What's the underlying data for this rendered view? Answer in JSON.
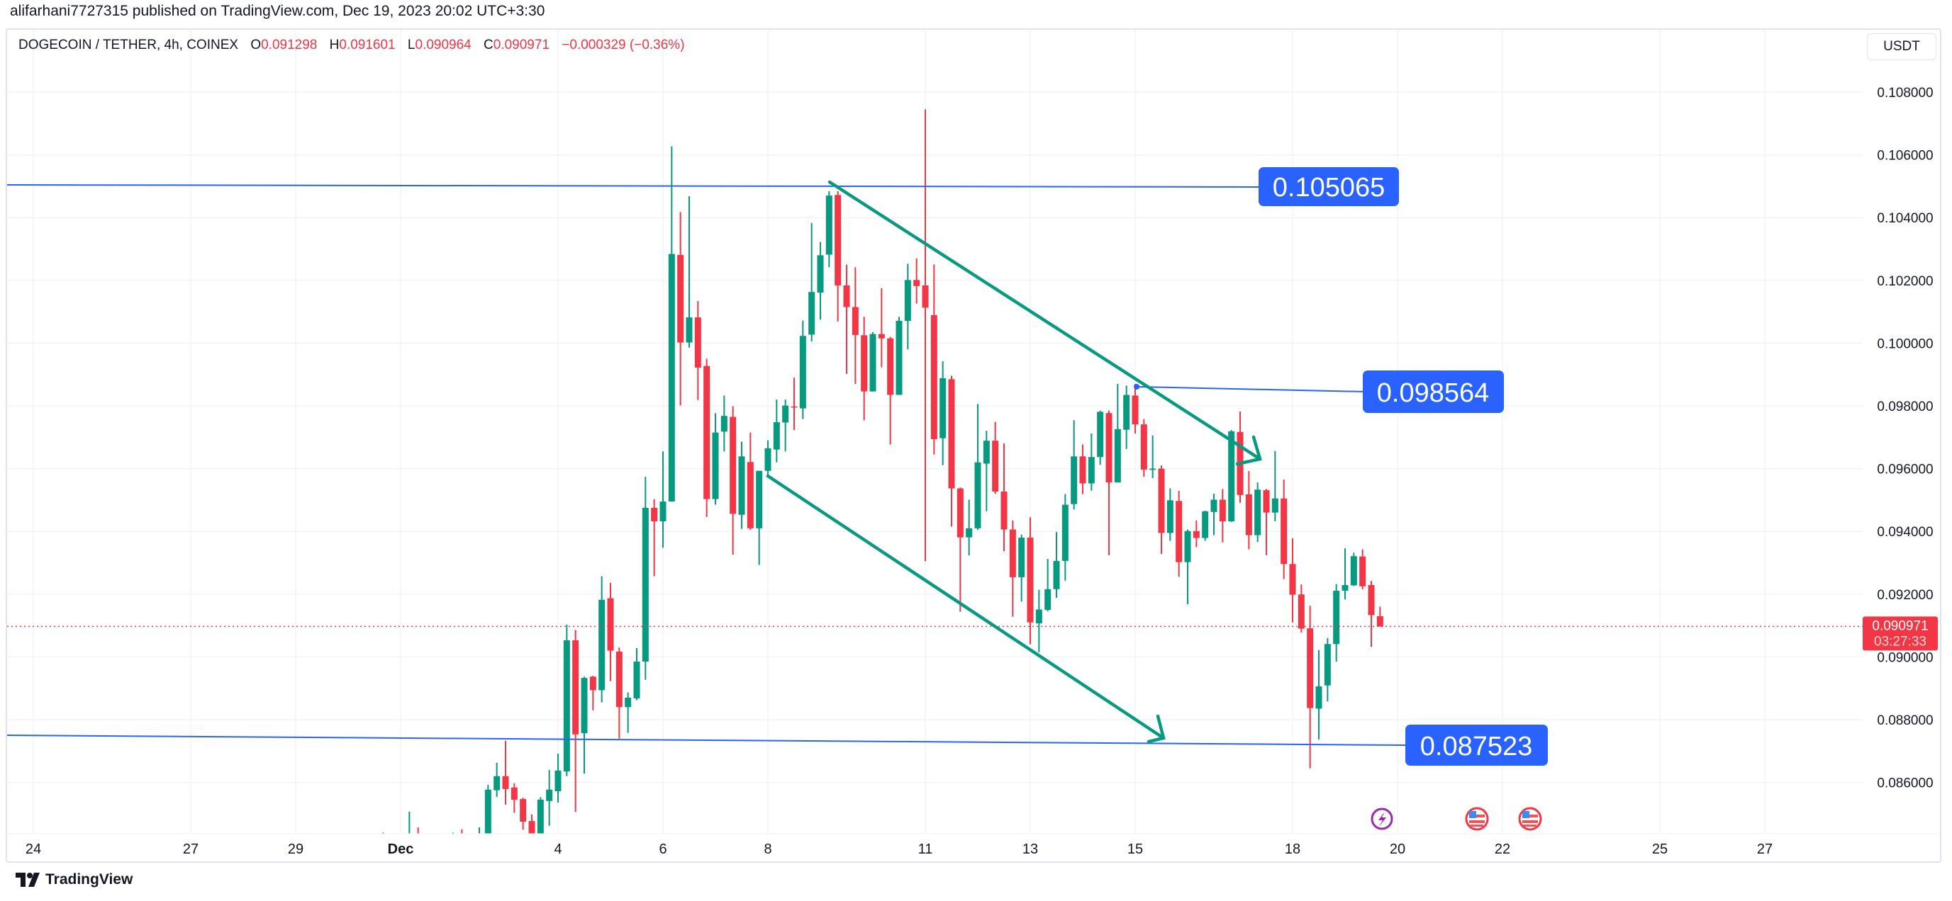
{
  "header": {
    "published": "alifarhani7727315 published on TradingView.com, Dec 19, 2023 20:02 UTC+3:30",
    "symbol": "DOGECOIN / TETHER, 4h, COINEX",
    "o_label": "O",
    "o_value": "0.091298",
    "h_label": "H",
    "h_value": "0.091601",
    "l_label": "L",
    "l_value": "0.090964",
    "c_label": "C",
    "c_value": "0.090971",
    "change": "−0.000329 (−0.36%)"
  },
  "currency_button": "USDT",
  "current_price": {
    "value": "0.090971",
    "countdown": "03:27:33",
    "price": 0.090971
  },
  "drawings": {
    "level_high": "0.105065",
    "level_mid": "0.098564",
    "level_low": "0.087523"
  },
  "events": [
    {
      "icon": "lightning-icon"
    },
    {
      "icon": "us-flag-icon"
    },
    {
      "icon": "us-flag-icon"
    }
  ],
  "footer": {
    "brand": "TradingView"
  },
  "colors": {
    "up": "#089981",
    "down": "#f23645",
    "drawing_blue": "#2962ff",
    "trend_green": "#089981"
  },
  "chart_data": {
    "type": "candlestick",
    "title": "DOGECOIN / TETHER, 4h, COINEX",
    "interval_hours": 4,
    "last_candle_hour_from_dec1": 448,
    "ylim": [
      0.0843,
      0.1092
    ],
    "y_ticks": [
      "0.108000",
      "0.106000",
      "0.104000",
      "0.102000",
      "0.100000",
      "0.098000",
      "0.096000",
      "0.094000",
      "0.092000",
      "0.090000",
      "0.088000",
      "0.086000"
    ],
    "x_ticks": [
      {
        "label": "24",
        "day": -7
      },
      {
        "label": "27",
        "day": -4
      },
      {
        "label": "29",
        "day": -2
      },
      {
        "label": "Dec",
        "day": 0,
        "bold": true
      },
      {
        "label": "4",
        "day": 3
      },
      {
        "label": "6",
        "day": 5
      },
      {
        "label": "8",
        "day": 7
      },
      {
        "label": "11",
        "day": 10
      },
      {
        "label": "13",
        "day": 12
      },
      {
        "label": "15",
        "day": 14
      },
      {
        "label": "18",
        "day": 17
      },
      {
        "label": "20",
        "day": 19
      },
      {
        "label": "22",
        "day": 21
      },
      {
        "label": "25",
        "day": 24
      },
      {
        "label": "27",
        "day": 26
      }
    ],
    "candles_ohlc": [
      [
        0.0838,
        0.0844,
        0.0835,
        0.0841
      ],
      [
        0.0841,
        0.0843,
        0.0837,
        0.084
      ],
      [
        0.084,
        0.0842,
        0.0835,
        0.0838
      ],
      [
        0.0838,
        0.08507,
        0.0836,
        0.0842
      ],
      [
        0.0842,
        0.08457,
        0.0838,
        0.084
      ],
      [
        0.084,
        0.0843,
        0.0838,
        0.0841
      ],
      [
        0.0841,
        0.0843,
        0.0837,
        0.0839
      ],
      [
        0.0839,
        0.0842,
        0.0837,
        0.084
      ],
      [
        0.084,
        0.0844,
        0.0838,
        0.0842
      ],
      [
        0.0842,
        0.0845,
        0.0839,
        0.0841
      ],
      [
        0.0841,
        0.0843,
        0.0838,
        0.084
      ],
      [
        0.084,
        0.08457,
        0.0839,
        0.0842
      ],
      [
        0.0842,
        0.08592,
        0.0841,
        0.08577
      ],
      [
        0.08575,
        0.08663,
        0.08554,
        0.0862
      ],
      [
        0.0862,
        0.08733,
        0.08529,
        0.08579
      ],
      [
        0.08584,
        0.08597,
        0.08503,
        0.08545
      ],
      [
        0.08547,
        0.08551,
        0.0845,
        0.08475
      ],
      [
        0.08477,
        0.08498,
        0.0841,
        0.0843
      ],
      [
        0.0843,
        0.08553,
        0.0842,
        0.08545
      ],
      [
        0.08541,
        0.0864,
        0.08462,
        0.08577
      ],
      [
        0.08572,
        0.08692,
        0.08536,
        0.08638
      ],
      [
        0.08635,
        0.09103,
        0.0862,
        0.09053
      ],
      [
        0.09053,
        0.09086,
        0.08506,
        0.08753
      ],
      [
        0.08757,
        0.08937,
        0.08628,
        0.08933
      ],
      [
        0.08937,
        0.0894,
        0.0883,
        0.08894
      ],
      [
        0.08894,
        0.09257,
        0.08855,
        0.09182
      ],
      [
        0.09187,
        0.09236,
        0.08923,
        0.0902
      ],
      [
        0.09017,
        0.0903,
        0.0874,
        0.0884
      ],
      [
        0.0884,
        0.08887,
        0.08758,
        0.0887
      ],
      [
        0.08868,
        0.09028,
        0.08862,
        0.08985
      ],
      [
        0.08985,
        0.09574,
        0.08927,
        0.09475
      ],
      [
        0.09475,
        0.09503,
        0.09257,
        0.09432
      ],
      [
        0.09432,
        0.09655,
        0.09348,
        0.09495
      ],
      [
        0.09495,
        0.10627,
        0.09495,
        0.10284
      ],
      [
        0.10281,
        0.10418,
        0.09801,
        0.10002
      ],
      [
        0.10002,
        0.10468,
        0.09986,
        0.10082
      ],
      [
        0.10082,
        0.10134,
        0.09819,
        0.09922
      ],
      [
        0.09927,
        0.0995,
        0.09446,
        0.09503
      ],
      [
        0.09503,
        0.09777,
        0.09485,
        0.09715
      ],
      [
        0.09718,
        0.09833,
        0.09655,
        0.09768
      ],
      [
        0.09765,
        0.09799,
        0.09326,
        0.09456
      ],
      [
        0.09453,
        0.09686,
        0.09408,
        0.09639
      ],
      [
        0.09621,
        0.09715,
        0.09405,
        0.0941
      ],
      [
        0.0941,
        0.09593,
        0.09293,
        0.09593
      ],
      [
        0.09593,
        0.0969,
        0.0958,
        0.09665
      ],
      [
        0.09661,
        0.0982,
        0.0962,
        0.09748
      ],
      [
        0.09747,
        0.0982,
        0.09655,
        0.09801
      ],
      [
        0.09798,
        0.0989,
        0.09723,
        0.09795
      ],
      [
        0.09792,
        0.10072,
        0.09758,
        0.10023
      ],
      [
        0.10027,
        0.10383,
        0.10005,
        0.10163
      ],
      [
        0.10161,
        0.10322,
        0.10075,
        0.1028
      ],
      [
        0.10282,
        0.10484,
        0.10242,
        0.1047
      ],
      [
        0.10472,
        0.10484,
        0.10069,
        0.10184
      ],
      [
        0.10184,
        0.1025,
        0.09902,
        0.10115
      ],
      [
        0.10115,
        0.10242,
        0.0987,
        0.10026
      ],
      [
        0.10025,
        0.10084,
        0.09754,
        0.09846
      ],
      [
        0.09846,
        0.10035,
        0.09846,
        0.10029
      ],
      [
        0.10029,
        0.10175,
        0.09923,
        0.10015
      ],
      [
        0.10015,
        0.1002,
        0.09677,
        0.09835
      ],
      [
        0.09835,
        0.10084,
        0.09835,
        0.10071
      ],
      [
        0.10071,
        0.10253,
        0.0998,
        0.10201
      ],
      [
        0.10201,
        0.1027,
        0.10126,
        0.10182
      ],
      [
        0.10184,
        0.10745,
        0.09305,
        0.10113
      ],
      [
        0.10089,
        0.10251,
        0.09645,
        0.09694
      ],
      [
        0.09697,
        0.09942,
        0.09611,
        0.09888
      ],
      [
        0.09885,
        0.09896,
        0.09415,
        0.09537
      ],
      [
        0.09537,
        0.0954,
        0.09144,
        0.09381
      ],
      [
        0.09381,
        0.09501,
        0.09323,
        0.0941
      ],
      [
        0.0941,
        0.09806,
        0.09405,
        0.0962
      ],
      [
        0.09616,
        0.09721,
        0.09464,
        0.09689
      ],
      [
        0.09689,
        0.09749,
        0.0952,
        0.09527
      ],
      [
        0.09527,
        0.0968,
        0.09337,
        0.09406
      ],
      [
        0.09406,
        0.09435,
        0.09128,
        0.09254
      ],
      [
        0.09254,
        0.0939,
        0.09176,
        0.0938
      ],
      [
        0.0938,
        0.09445,
        0.0904,
        0.0911
      ],
      [
        0.09107,
        0.09214,
        0.09015,
        0.09151
      ],
      [
        0.0915,
        0.09312,
        0.09145,
        0.09216
      ],
      [
        0.09216,
        0.09398,
        0.09188,
        0.09306
      ],
      [
        0.09306,
        0.09519,
        0.09243,
        0.09485
      ],
      [
        0.09487,
        0.09754,
        0.0947,
        0.09639
      ],
      [
        0.09639,
        0.09677,
        0.09519,
        0.09553
      ],
      [
        0.09553,
        0.09712,
        0.0953,
        0.09637
      ],
      [
        0.09637,
        0.09785,
        0.09612,
        0.09781
      ],
      [
        0.09777,
        0.09785,
        0.09324,
        0.09556
      ],
      [
        0.09556,
        0.0987,
        0.09556,
        0.09726
      ],
      [
        0.09724,
        0.09865,
        0.09663,
        0.09835
      ],
      [
        0.09833,
        0.0987,
        0.09712,
        0.09741
      ],
      [
        0.09741,
        0.09758,
        0.09574,
        0.09597
      ],
      [
        0.09596,
        0.09706,
        0.0957,
        0.096
      ],
      [
        0.096,
        0.0961,
        0.09328,
        0.09395
      ],
      [
        0.09395,
        0.09537,
        0.0937,
        0.09499
      ],
      [
        0.09497,
        0.09529,
        0.09255,
        0.09302
      ],
      [
        0.09302,
        0.09406,
        0.09168,
        0.09401
      ],
      [
        0.09401,
        0.09435,
        0.0935,
        0.09379
      ],
      [
        0.09379,
        0.09466,
        0.0937,
        0.09464
      ],
      [
        0.09462,
        0.0952,
        0.09388,
        0.09501
      ],
      [
        0.09501,
        0.09535,
        0.09365,
        0.09432
      ],
      [
        0.09432,
        0.09723,
        0.0943,
        0.09719
      ],
      [
        0.09717,
        0.09782,
        0.09491,
        0.09516
      ],
      [
        0.09518,
        0.09592,
        0.09343,
        0.09388
      ],
      [
        0.09388,
        0.09556,
        0.09366,
        0.09533
      ],
      [
        0.09531,
        0.09535,
        0.09324,
        0.0946
      ],
      [
        0.0946,
        0.09656,
        0.09432,
        0.09505
      ],
      [
        0.09505,
        0.09565,
        0.09248,
        0.09296
      ],
      [
        0.09296,
        0.09378,
        0.0911,
        0.09198
      ],
      [
        0.09199,
        0.09231,
        0.09078,
        0.0909
      ],
      [
        0.09091,
        0.09163,
        0.08645,
        0.08837
      ],
      [
        0.08835,
        0.09022,
        0.08737,
        0.08906
      ],
      [
        0.08909,
        0.0906,
        0.08858,
        0.09041
      ],
      [
        0.09041,
        0.09232,
        0.08985,
        0.09211
      ],
      [
        0.09211,
        0.09346,
        0.09183,
        0.09229
      ],
      [
        0.09228,
        0.09332,
        0.09226,
        0.09321
      ],
      [
        0.0932,
        0.09343,
        0.09215,
        0.09225
      ],
      [
        0.09229,
        0.09242,
        0.09032,
        0.09133
      ],
      [
        0.091298,
        0.091601,
        0.090964,
        0.090971
      ]
    ]
  }
}
